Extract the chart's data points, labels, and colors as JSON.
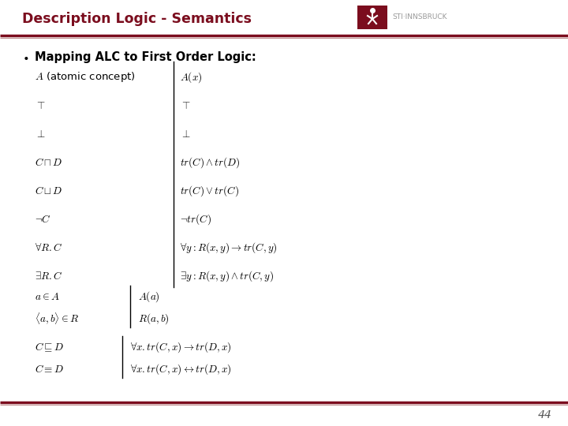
{
  "title": "Description Logic - Semantics",
  "title_color": "#7B0D1E",
  "bg_color": "#FFFFFF",
  "slide_number": "44",
  "bullet": "Mapping ALC to First Order Logic:",
  "header_line_color": "#7B0D1E",
  "footer_line_color": "#7B0D1E",
  "table_rows": [
    [
      "$A$ (atomic concept)",
      "$A(x)$"
    ],
    [
      "$\\top$",
      "$\\top$"
    ],
    [
      "$\\bot$",
      "$\\bot$"
    ],
    [
      "$C \\sqcap D$",
      "$tr(C) \\wedge tr(D)$"
    ],
    [
      "$C \\sqcup D$",
      "$tr(C) \\vee tr(C)$"
    ],
    [
      "$\\neg C$",
      "$\\neg tr(C)$"
    ],
    [
      "$\\forall R.C$",
      "$\\forall y : R(x,y) \\rightarrow tr(C,y)$"
    ],
    [
      "$\\exists R.C$",
      "$\\exists y : R(x,y) \\wedge tr(C,y)$"
    ]
  ],
  "table2_rows": [
    [
      "$a \\in A$",
      "$A(a)$"
    ],
    [
      "$\\langle a,b \\rangle \\in R$",
      "$R(a,b)$"
    ]
  ],
  "table3_rows": [
    [
      "$C \\sqsubseteq D$",
      "$\\forall x.tr(C,x) \\rightarrow tr(D,x)$"
    ],
    [
      "$C \\equiv D$",
      "$\\forall x.tr(C,x) \\leftrightarrow tr(D,x)$"
    ]
  ],
  "logo_color": "#7B0D1E",
  "sti_text": "STI·INNSBRUCK"
}
